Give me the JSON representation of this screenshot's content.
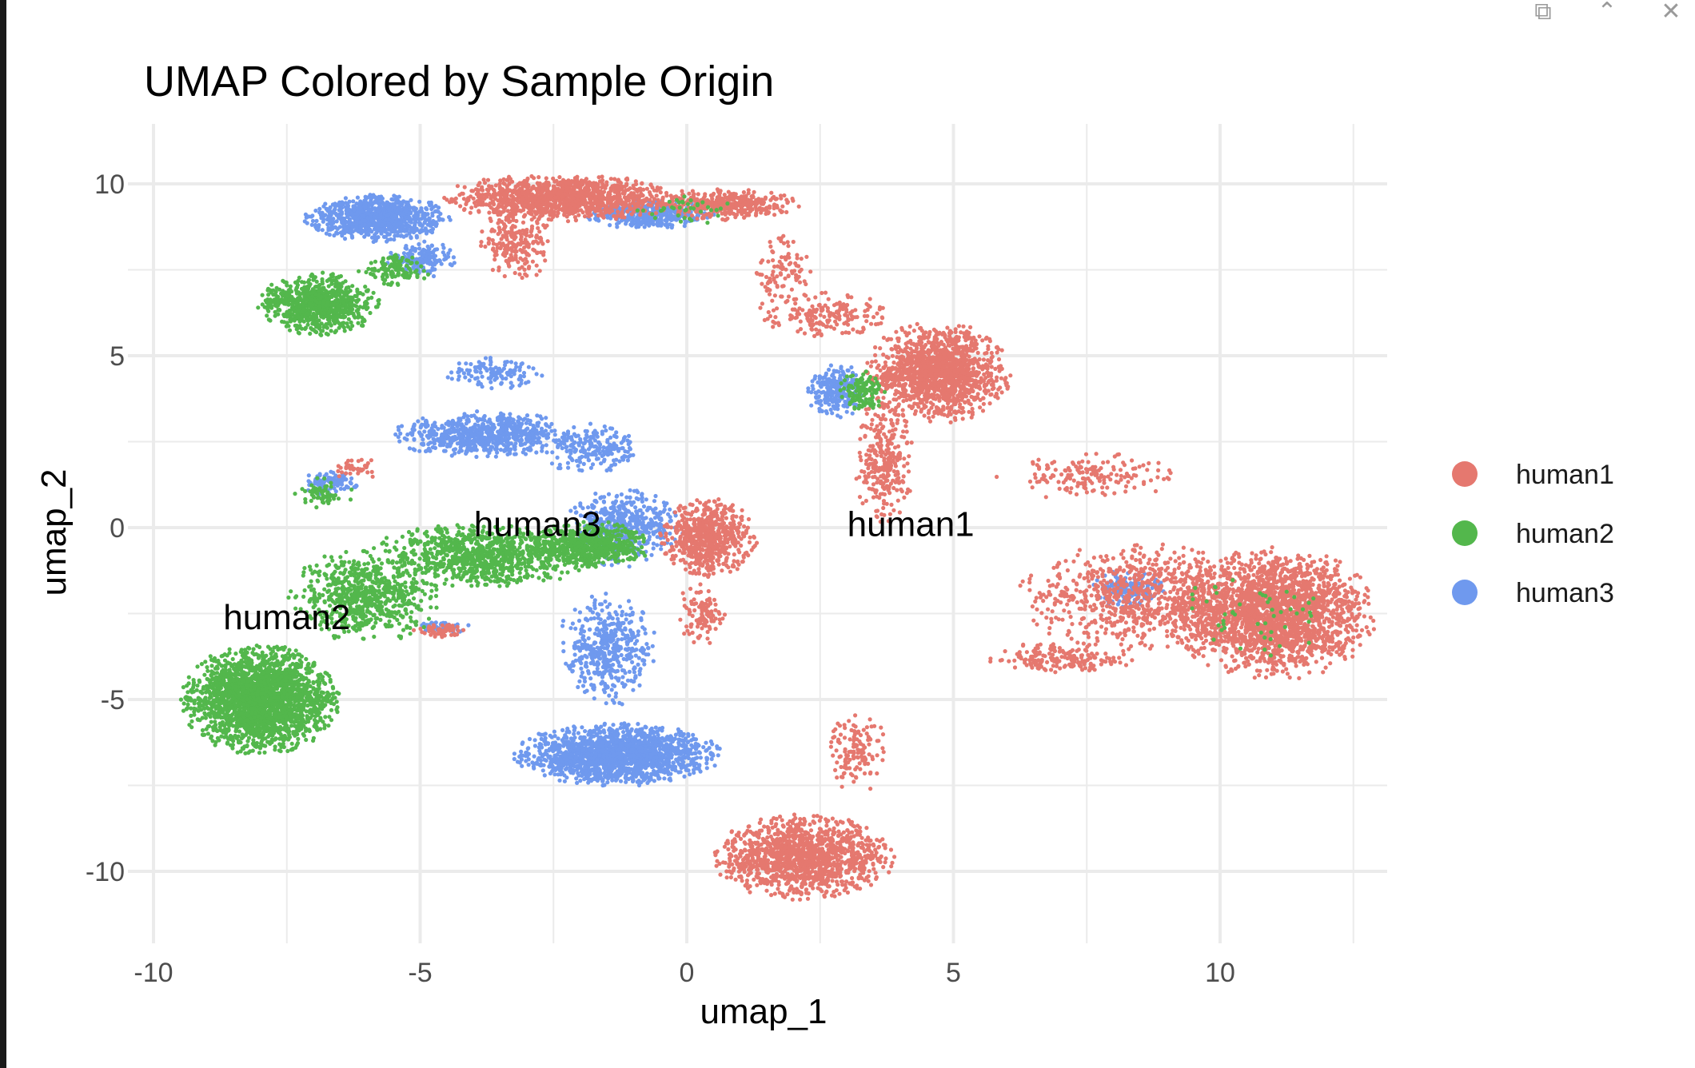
{
  "window": {
    "controls": [
      {
        "name": "copy-icon",
        "glyph": "⧉"
      },
      {
        "name": "collapse-icon",
        "glyph": "⌃"
      },
      {
        "name": "close-icon",
        "glyph": "✕"
      }
    ]
  },
  "chart_data": {
    "type": "scatter",
    "title": "UMAP Colored by Sample Origin",
    "xlabel": "umap_1",
    "ylabel": "umap_2",
    "xlim": [
      -10,
      13
    ],
    "ylim": [
      -12,
      12
    ],
    "xticks": [
      -10,
      -5,
      0,
      5,
      10
    ],
    "yticks": [
      -10,
      -5,
      0,
      5,
      10
    ],
    "xtick_labels": [
      "-10",
      "-5",
      "0",
      "5",
      "10"
    ],
    "ytick_labels": [
      "-10",
      "-5",
      "0",
      "5",
      "10"
    ],
    "grid": true,
    "legend": {
      "placement": "right",
      "entries": [
        "human1",
        "human2",
        "human3"
      ]
    },
    "series": [
      {
        "name": "human1",
        "color": "#E5786F"
      },
      {
        "name": "human2",
        "color": "#53B74C"
      },
      {
        "name": "human3",
        "color": "#6F99EE"
      }
    ],
    "cluster_labels": [
      {
        "text": "human3",
        "x": -2.8,
        "y": 0.1
      },
      {
        "text": "human1",
        "x": 4.2,
        "y": 0.1
      },
      {
        "text": "human2",
        "x": -7.5,
        "y": -2.6
      }
    ],
    "clusters": [
      {
        "series": "human1",
        "cx": -2.3,
        "cy": 9.6,
        "rx": 2.0,
        "ry": 0.6,
        "n": 1100
      },
      {
        "series": "human1",
        "cx": 0.8,
        "cy": 9.4,
        "rx": 1.2,
        "ry": 0.4,
        "n": 400
      },
      {
        "series": "human1",
        "cx": -3.2,
        "cy": 8.3,
        "rx": 0.6,
        "ry": 1.0,
        "n": 220
      },
      {
        "series": "human1",
        "cx": 4.7,
        "cy": 4.5,
        "rx": 1.2,
        "ry": 1.3,
        "n": 1400
      },
      {
        "series": "human1",
        "cx": 3.7,
        "cy": 2.0,
        "rx": 0.5,
        "ry": 1.6,
        "n": 280
      },
      {
        "series": "human1",
        "cx": 2.5,
        "cy": 6.2,
        "rx": 1.2,
        "ry": 0.6,
        "n": 180
      },
      {
        "series": "human1",
        "cx": 1.8,
        "cy": 7.5,
        "rx": 0.5,
        "ry": 0.9,
        "n": 90
      },
      {
        "series": "human1",
        "cx": 7.5,
        "cy": 1.5,
        "rx": 1.5,
        "ry": 0.6,
        "n": 160
      },
      {
        "series": "human1",
        "cx": 11.0,
        "cy": -2.5,
        "rx": 1.7,
        "ry": 1.7,
        "n": 2200
      },
      {
        "series": "human1",
        "cx": 8.5,
        "cy": -2.0,
        "rx": 2.0,
        "ry": 1.4,
        "n": 750
      },
      {
        "series": "human1",
        "cx": 7.0,
        "cy": -3.8,
        "rx": 1.2,
        "ry": 0.4,
        "n": 180
      },
      {
        "series": "human1",
        "cx": 2.2,
        "cy": -9.6,
        "rx": 1.5,
        "ry": 1.1,
        "n": 1300
      },
      {
        "series": "human1",
        "cx": 3.2,
        "cy": -6.5,
        "rx": 0.5,
        "ry": 1.1,
        "n": 130
      },
      {
        "series": "human1",
        "cx": 0.4,
        "cy": -0.3,
        "rx": 0.8,
        "ry": 1.0,
        "n": 650
      },
      {
        "series": "human1",
        "cx": 0.3,
        "cy": -2.5,
        "rx": 0.4,
        "ry": 0.9,
        "n": 110
      },
      {
        "series": "human1",
        "cx": -4.6,
        "cy": -3.0,
        "rx": 0.5,
        "ry": 0.2,
        "n": 60
      },
      {
        "series": "human1",
        "cx": -6.2,
        "cy": 1.7,
        "rx": 0.4,
        "ry": 0.3,
        "n": 40
      },
      {
        "series": "human2",
        "cx": -6.9,
        "cy": 6.5,
        "rx": 1.0,
        "ry": 0.8,
        "n": 800
      },
      {
        "series": "human2",
        "cx": -5.5,
        "cy": 7.5,
        "rx": 0.6,
        "ry": 0.4,
        "n": 120
      },
      {
        "series": "human2",
        "cx": -8.0,
        "cy": -5.0,
        "rx": 1.3,
        "ry": 1.4,
        "n": 2300
      },
      {
        "series": "human2",
        "cx": -6.0,
        "cy": -2.0,
        "rx": 1.3,
        "ry": 1.2,
        "n": 700
      },
      {
        "series": "human2",
        "cx": -3.8,
        "cy": -0.8,
        "rx": 2.0,
        "ry": 0.8,
        "n": 950
      },
      {
        "series": "human2",
        "cx": -1.8,
        "cy": -0.5,
        "rx": 1.0,
        "ry": 0.6,
        "n": 600
      },
      {
        "series": "human2",
        "cx": 3.3,
        "cy": 4.0,
        "rx": 0.4,
        "ry": 0.6,
        "n": 120
      },
      {
        "series": "human2",
        "cx": -6.8,
        "cy": 1.0,
        "rx": 0.5,
        "ry": 0.4,
        "n": 60
      },
      {
        "series": "human2",
        "cx": 0.0,
        "cy": 9.3,
        "rx": 1.0,
        "ry": 0.4,
        "n": 40
      },
      {
        "series": "human2",
        "cx": 10.5,
        "cy": -2.5,
        "rx": 1.5,
        "ry": 1.5,
        "n": 50
      },
      {
        "series": "human3",
        "cx": -5.8,
        "cy": 9.0,
        "rx": 1.2,
        "ry": 0.6,
        "n": 900
      },
      {
        "series": "human3",
        "cx": -5.0,
        "cy": 7.8,
        "rx": 0.6,
        "ry": 0.5,
        "n": 150
      },
      {
        "series": "human3",
        "cx": -0.7,
        "cy": 9.1,
        "rx": 1.1,
        "ry": 0.4,
        "n": 400
      },
      {
        "series": "human3",
        "cx": -3.8,
        "cy": 2.7,
        "rx": 1.5,
        "ry": 0.6,
        "n": 700
      },
      {
        "series": "human3",
        "cx": -1.8,
        "cy": 2.3,
        "rx": 0.8,
        "ry": 0.7,
        "n": 200
      },
      {
        "series": "human3",
        "cx": -3.6,
        "cy": 4.5,
        "rx": 0.8,
        "ry": 0.4,
        "n": 120
      },
      {
        "series": "human3",
        "cx": -6.7,
        "cy": 1.3,
        "rx": 0.5,
        "ry": 0.3,
        "n": 110
      },
      {
        "series": "human3",
        "cx": -1.2,
        "cy": 0.0,
        "rx": 1.0,
        "ry": 1.0,
        "n": 480
      },
      {
        "series": "human3",
        "cx": -1.5,
        "cy": -3.5,
        "rx": 0.8,
        "ry": 1.5,
        "n": 450
      },
      {
        "series": "human3",
        "cx": -1.3,
        "cy": -6.6,
        "rx": 1.7,
        "ry": 0.8,
        "n": 1700
      },
      {
        "series": "human3",
        "cx": 2.8,
        "cy": 4.0,
        "rx": 0.5,
        "ry": 0.7,
        "n": 260
      },
      {
        "series": "human3",
        "cx": 8.3,
        "cy": -1.8,
        "rx": 0.6,
        "ry": 0.5,
        "n": 160
      },
      {
        "series": "human3",
        "cx": -4.6,
        "cy": -2.9,
        "rx": 0.5,
        "ry": 0.15,
        "n": 50
      }
    ]
  }
}
